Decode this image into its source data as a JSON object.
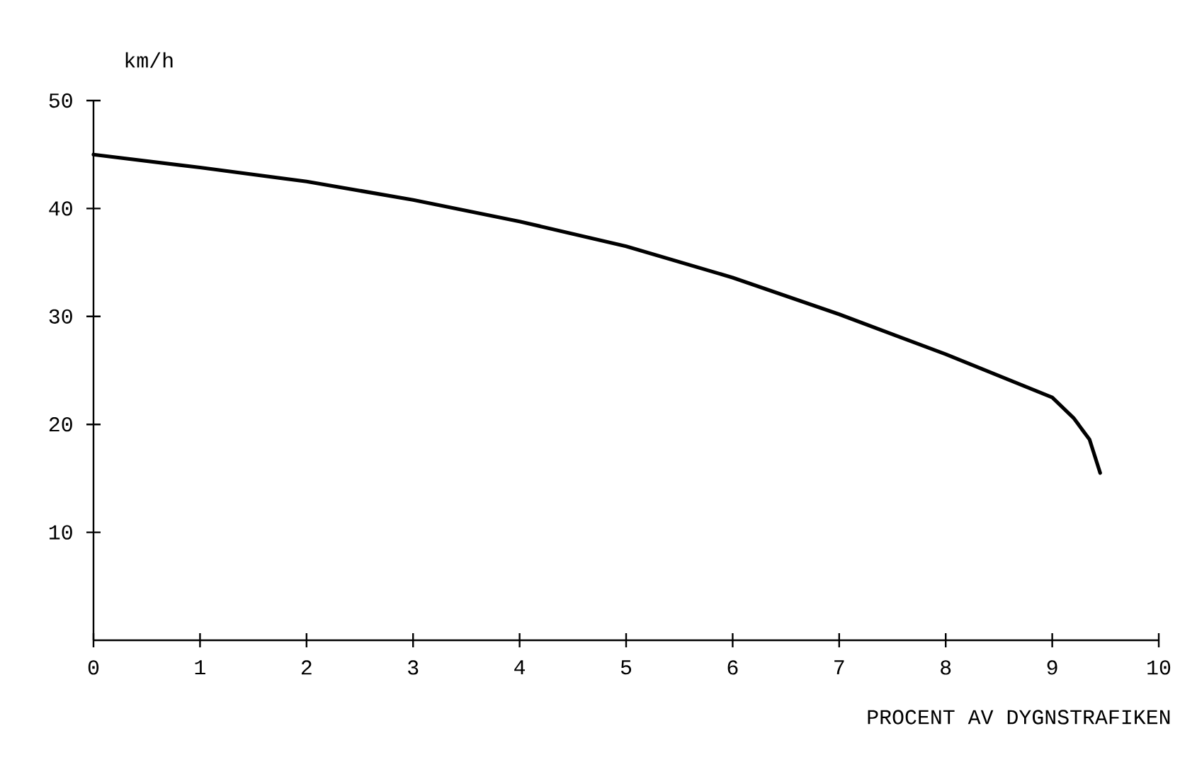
{
  "chart_data": {
    "type": "line",
    "xlabel": "PROCENT AV DYGNSTRAFIKEN",
    "ylabel": "km/h",
    "x": [
      0,
      1,
      2,
      3,
      4,
      5,
      6,
      7,
      8,
      9,
      9.2,
      9.35,
      9.45
    ],
    "series": [
      {
        "color": "#000000",
        "values": [
          45,
          43.8,
          42.5,
          40.8,
          38.8,
          36.5,
          33.6,
          30.2,
          26.5,
          22.5,
          20.6,
          18.6,
          15.5
        ]
      }
    ],
    "xlim": [
      0,
      10
    ],
    "ylim": [
      0,
      50
    ],
    "xticks": [
      0,
      1,
      2,
      3,
      4,
      5,
      6,
      7,
      8,
      9,
      10
    ],
    "yticks": [
      10,
      20,
      30,
      40,
      50
    ],
    "grid": false,
    "marker": "none",
    "line_style": "solid"
  }
}
